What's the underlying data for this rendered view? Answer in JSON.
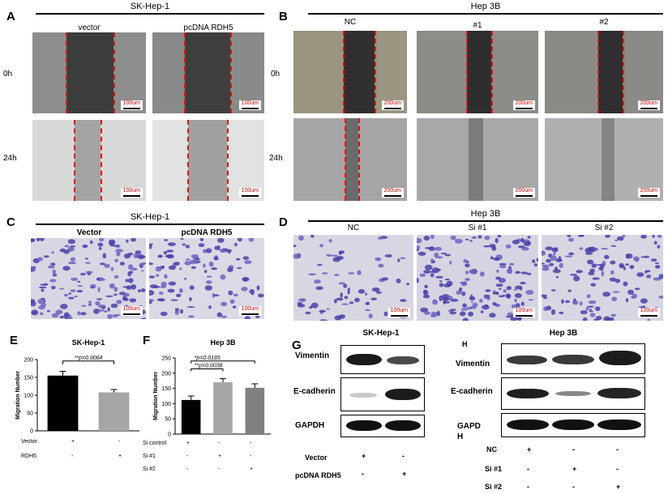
{
  "panels": {
    "A": {
      "label": "A",
      "header": "SK-Hep-1",
      "cols": [
        "vector",
        "pcDNA RDH5"
      ],
      "rows": [
        "0h",
        "24h"
      ],
      "scale": "100um"
    },
    "B": {
      "label": "B",
      "header": "Hep 3B",
      "cols": [
        "NC",
        "#1",
        "#2"
      ],
      "rows": [
        "0h",
        "24h"
      ],
      "scale": "200um"
    },
    "C": {
      "label": "C",
      "header": "SK-Hep-1",
      "cols": [
        "Vector",
        "pcDNA RDH5"
      ],
      "scale": "100um"
    },
    "D": {
      "label": "D",
      "header": "Hep 3B",
      "cols": [
        "NC",
        "Si #1",
        "Si #2"
      ],
      "scale": "100um"
    },
    "E": {
      "label": "E",
      "signif": [
        "**p=0.0064"
      ],
      "conds": [
        {
          "name": "Vector",
          "marks": [
            "+",
            "-"
          ]
        },
        {
          "name": "RDH5",
          "marks": [
            "-",
            "+"
          ]
        }
      ]
    },
    "F": {
      "label": "F",
      "signif": [
        "*p=0.0185",
        "**p=0.0038"
      ],
      "conds": [
        {
          "name": "Si control",
          "marks": [
            "+",
            "-",
            "-"
          ]
        },
        {
          "name": "Si #1",
          "marks": [
            "-",
            "+",
            "-"
          ]
        },
        {
          "name": "Si #2",
          "marks": [
            "-",
            "-",
            "+"
          ]
        }
      ]
    },
    "G": {
      "label": "G",
      "header": "SK-Hep-1",
      "proteins": [
        "Vimentin",
        "E-cadherin",
        "GAPDH"
      ],
      "conds": [
        {
          "name": "Vector",
          "marks": [
            "+",
            "-"
          ]
        },
        {
          "name": "pcDNA RDH5",
          "marks": [
            "-",
            "+"
          ]
        }
      ]
    },
    "H": {
      "label": "H",
      "header": "Hep 3B",
      "proteins": [
        "Vimentin",
        "E-cadherin",
        "GAPD\nH"
      ],
      "conds": [
        {
          "name": "NC",
          "marks": [
            "+",
            "-",
            "-"
          ]
        },
        {
          "name": "Si #1",
          "marks": [
            "-",
            "+",
            "-"
          ]
        },
        {
          "name": "Si #2",
          "marks": [
            "-",
            "-",
            "+"
          ]
        }
      ]
    }
  },
  "chart_data": [
    {
      "type": "bar",
      "title": "SK-Hep-1",
      "xlabel": "",
      "ylabel": "Migration Number",
      "categories": [
        "Vector",
        "RDH5"
      ],
      "values": [
        155,
        108
      ],
      "errors": [
        12,
        8
      ],
      "ylim": [
        0,
        200
      ],
      "yticks": [
        0,
        50,
        100,
        150,
        200
      ],
      "colors": [
        "#000000",
        "#a6a6a6"
      ]
    },
    {
      "type": "bar",
      "title": "Hep 3B",
      "xlabel": "",
      "ylabel": "Migration Number",
      "categories": [
        "Si control",
        "Si #1",
        "Si #2"
      ],
      "values": [
        112,
        170,
        152
      ],
      "errors": [
        13,
        12,
        13
      ],
      "ylim": [
        0,
        250
      ],
      "yticks": [
        0,
        50,
        100,
        150,
        200,
        250
      ],
      "colors": [
        "#000000",
        "#a6a6a6",
        "#808080"
      ]
    }
  ]
}
